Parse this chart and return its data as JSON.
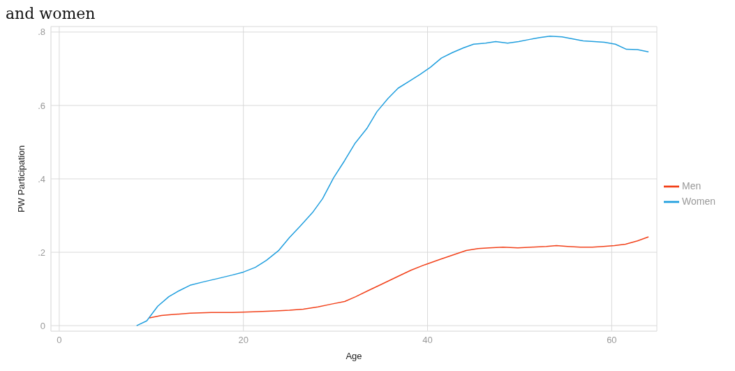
{
  "chart_data": {
    "type": "line",
    "title": "and women",
    "xlabel": "Age",
    "ylabel": "PW Participation",
    "xlim": [
      -0.9,
      64.9
    ],
    "xticks": [
      0,
      20,
      40,
      60
    ],
    "ylim": [
      -0.015,
      0.815
    ],
    "yticks": [
      {
        "value": 0,
        "label": "0"
      },
      {
        "value": 0.2,
        "label": ".2"
      },
      {
        "value": 0.4,
        "label": ".4"
      },
      {
        "value": 0.6,
        "label": ".6"
      },
      {
        "value": 0.8,
        "label": ".8"
      }
    ],
    "grid": true,
    "legend": "right",
    "marker": "none",
    "line_style": "solid",
    "series": [
      {
        "name": "Women",
        "color": "#1f9ede",
        "x": [
          8.4,
          9.5,
          10.7,
          11.9,
          13.0,
          14.2,
          15.6,
          17.3,
          18.8,
          20.0,
          21.3,
          22.5,
          23.8,
          25.0,
          26.2,
          27.5,
          28.6,
          29.8,
          31.0,
          32.1,
          33.4,
          34.5,
          35.7,
          36.8,
          38.0,
          39.2,
          40.3,
          41.5,
          42.7,
          43.9,
          45.0,
          46.3,
          47.4,
          48.7,
          49.9,
          51.1,
          52.2,
          53.3,
          54.6,
          55.8,
          56.9,
          58.1,
          59.2,
          60.4,
          61.6,
          62.8,
          64.0
        ],
        "values": [
          0,
          0.013,
          0.053,
          0.079,
          0.095,
          0.11,
          0.119,
          0.129,
          0.138,
          0.146,
          0.159,
          0.178,
          0.204,
          0.24,
          0.272,
          0.308,
          0.346,
          0.403,
          0.45,
          0.496,
          0.537,
          0.583,
          0.619,
          0.647,
          0.666,
          0.685,
          0.704,
          0.729,
          0.744,
          0.757,
          0.767,
          0.77,
          0.774,
          0.77,
          0.774,
          0.78,
          0.785,
          0.789,
          0.787,
          0.781,
          0.776,
          0.774,
          0.772,
          0.767,
          0.753,
          0.752,
          0.746
        ]
      },
      {
        "name": "Men",
        "color": "#f2411a",
        "x": [
          9.8,
          11.1,
          12.2,
          14.2,
          16.5,
          18.8,
          21.1,
          23.5,
          25.0,
          26.5,
          28.1,
          29.6,
          31.0,
          32.2,
          33.5,
          35.1,
          36.6,
          38.2,
          39.7,
          41.3,
          42.8,
          44.2,
          45.5,
          46.7,
          48.2,
          49.8,
          51.3,
          52.9,
          54.0,
          55.2,
          56.6,
          57.9,
          59.1,
          60.3,
          61.5,
          62.8,
          64.0
        ],
        "values": [
          0.021,
          0.028,
          0.03,
          0.034,
          0.036,
          0.036,
          0.038,
          0.04,
          0.042,
          0.045,
          0.051,
          0.059,
          0.066,
          0.079,
          0.095,
          0.114,
          0.132,
          0.151,
          0.166,
          0.18,
          0.193,
          0.205,
          0.21,
          0.212,
          0.214,
          0.212,
          0.214,
          0.216,
          0.218,
          0.216,
          0.214,
          0.214,
          0.216,
          0.218,
          0.222,
          0.231,
          0.242
        ]
      }
    ]
  }
}
